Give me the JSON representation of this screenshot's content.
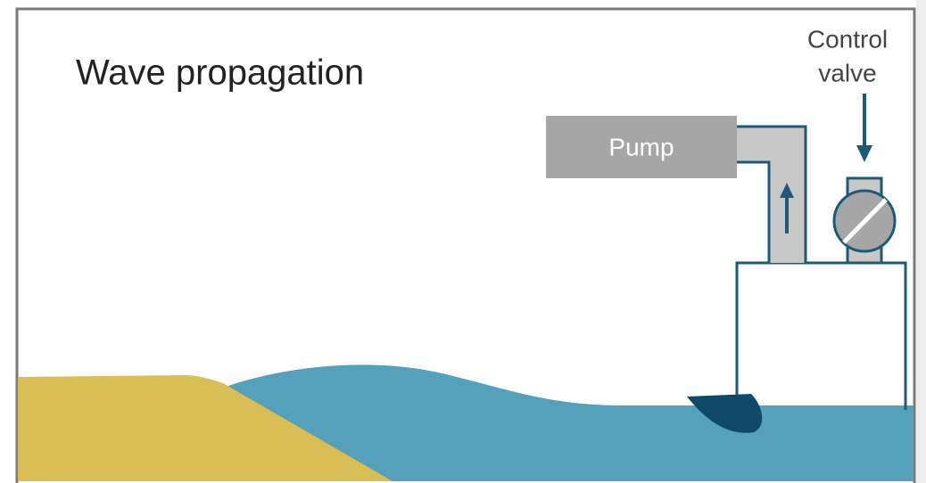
{
  "title": "Wave propagation",
  "pump": {
    "label": "Pump"
  },
  "control_valve": {
    "lines": [
      "Control",
      "valve"
    ]
  }
}
